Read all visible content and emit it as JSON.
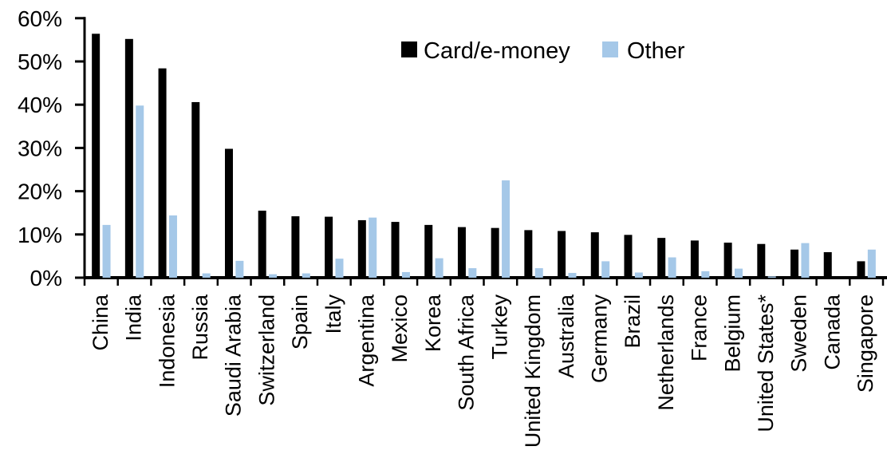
{
  "chart_data": {
    "type": "bar",
    "title": "",
    "xlabel": "",
    "ylabel": "",
    "ylim": [
      0,
      60
    ],
    "grid": false,
    "legend_position": "top-center",
    "ytick_values": [
      0,
      10,
      20,
      30,
      40,
      50,
      60
    ],
    "ytick_labels": [
      "0%",
      "10%",
      "20%",
      "30%",
      "40%",
      "50%",
      "60%"
    ],
    "categories": [
      "China",
      "India",
      "Indonesia",
      "Russia",
      "Saudi Arabia",
      "Switzerland",
      "Spain",
      "Italy",
      "Argentina",
      "Mexico",
      "Korea",
      "South Africa",
      "Turkey",
      "United Kingdom",
      "Australia",
      "Germany",
      "Brazil",
      "Netherlands",
      "France",
      "Belgium",
      "United States*",
      "Sweden",
      "Canada",
      "Singapore"
    ],
    "series": [
      {
        "name": "Card/e-money",
        "color": "#000000",
        "values": [
          56.4,
          55.2,
          48.4,
          40.6,
          29.8,
          15.5,
          14.2,
          14.1,
          13.3,
          12.9,
          12.2,
          11.7,
          11.5,
          11.0,
          10.8,
          10.5,
          9.9,
          9.2,
          8.6,
          8.1,
          7.8,
          6.5,
          5.9,
          3.8
        ]
      },
      {
        "name": "Other",
        "color": "#A5C8E8",
        "values": [
          12.2,
          39.8,
          14.4,
          1.0,
          3.9,
          0.8,
          1.0,
          4.4,
          13.9,
          1.3,
          4.5,
          2.2,
          22.5,
          2.2,
          1.1,
          3.8,
          1.2,
          4.7,
          1.5,
          2.1,
          0.3,
          8.0,
          0,
          6.5
        ]
      }
    ]
  }
}
